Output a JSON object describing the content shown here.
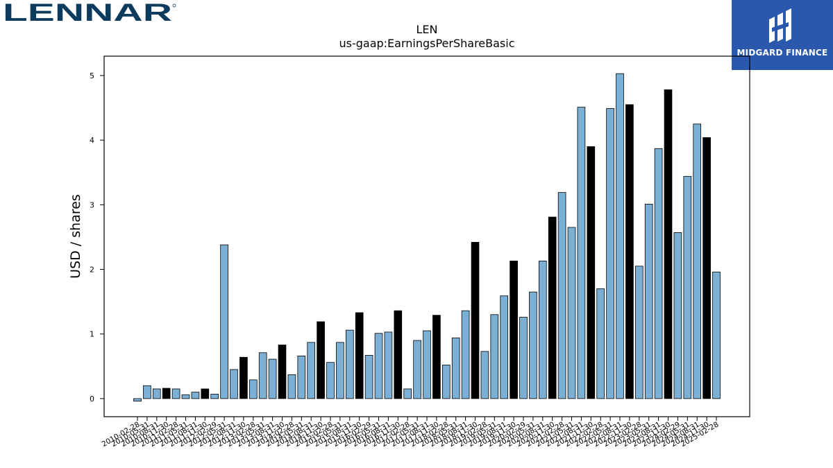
{
  "branding": {
    "left_logo_text": "LENNAR",
    "right_logo_text": "MIDGARD FINANCE",
    "left_logo_color": "#0d3b5e",
    "right_logo_bg": "#2a58ad"
  },
  "chart_data": {
    "type": "bar",
    "title": "LEN",
    "subtitle": "us-gaap:EarningsPerShareBasic",
    "ylabel": "USD / shares",
    "xlabel": "",
    "ylim": [
      -0.28,
      5.3
    ],
    "yticks": [
      0,
      1,
      2,
      3,
      4,
      5
    ],
    "colors": {
      "quarterly": "#7bafd4",
      "annual": "#000000",
      "edge": "#000000"
    },
    "grid": false,
    "categories": [
      "2010-02-28",
      "2010-05-31",
      "2010-08-31",
      "2010-11-30",
      "2011-02-28",
      "2011-05-31",
      "2011-08-31",
      "2011-11-30",
      "2012-02-29",
      "2012-05-31",
      "2012-08-31",
      "2012-11-30",
      "2013-02-28",
      "2013-05-31",
      "2013-08-31",
      "2013-11-30",
      "2014-02-28",
      "2014-05-31",
      "2014-08-31",
      "2014-11-30",
      "2015-02-28",
      "2015-05-31",
      "2015-08-31",
      "2015-11-30",
      "2016-02-29",
      "2016-05-31",
      "2016-08-31",
      "2016-11-30",
      "2017-02-28",
      "2017-05-31",
      "2017-08-31",
      "2017-11-30",
      "2018-02-28",
      "2018-05-31",
      "2018-08-31",
      "2018-11-30",
      "2019-02-28",
      "2019-05-31",
      "2019-08-31",
      "2019-11-30",
      "2020-02-29",
      "2020-05-31",
      "2020-08-31",
      "2020-11-30",
      "2021-02-28",
      "2021-05-31",
      "2021-08-31",
      "2021-11-30",
      "2022-02-28",
      "2022-05-31",
      "2022-08-31",
      "2022-11-30",
      "2023-02-28",
      "2023-05-31",
      "2023-08-31",
      "2023-11-30",
      "2024-02-29",
      "2024-05-31",
      "2024-08-31",
      "2024-11-30",
      "2025-02-28"
    ],
    "values": [
      -0.04,
      0.2,
      0.15,
      0.16,
      0.15,
      0.06,
      0.1,
      0.15,
      0.07,
      2.38,
      0.45,
      0.64,
      0.29,
      0.71,
      0.61,
      0.83,
      0.37,
      0.66,
      0.87,
      1.19,
      0.56,
      0.87,
      1.06,
      1.33,
      0.67,
      1.01,
      1.03,
      1.36,
      0.15,
      0.9,
      1.05,
      1.29,
      0.52,
      0.94,
      1.36,
      2.42,
      0.73,
      1.3,
      1.59,
      2.13,
      1.26,
      1.65,
      2.13,
      2.81,
      3.19,
      2.65,
      4.51,
      3.9,
      1.7,
      4.49,
      5.03,
      4.55,
      2.05,
      3.01,
      3.87,
      4.78,
      2.57,
      3.44,
      4.25,
      4.04,
      1.96
    ],
    "annual_flags": [
      false,
      false,
      false,
      true,
      false,
      false,
      false,
      true,
      false,
      false,
      false,
      true,
      false,
      false,
      false,
      true,
      false,
      false,
      false,
      true,
      false,
      false,
      false,
      true,
      false,
      false,
      false,
      true,
      false,
      false,
      false,
      true,
      false,
      false,
      false,
      true,
      false,
      false,
      false,
      true,
      false,
      false,
      false,
      true,
      false,
      false,
      false,
      true,
      false,
      false,
      false,
      true,
      false,
      false,
      false,
      true,
      false,
      false,
      false,
      true,
      false
    ]
  }
}
